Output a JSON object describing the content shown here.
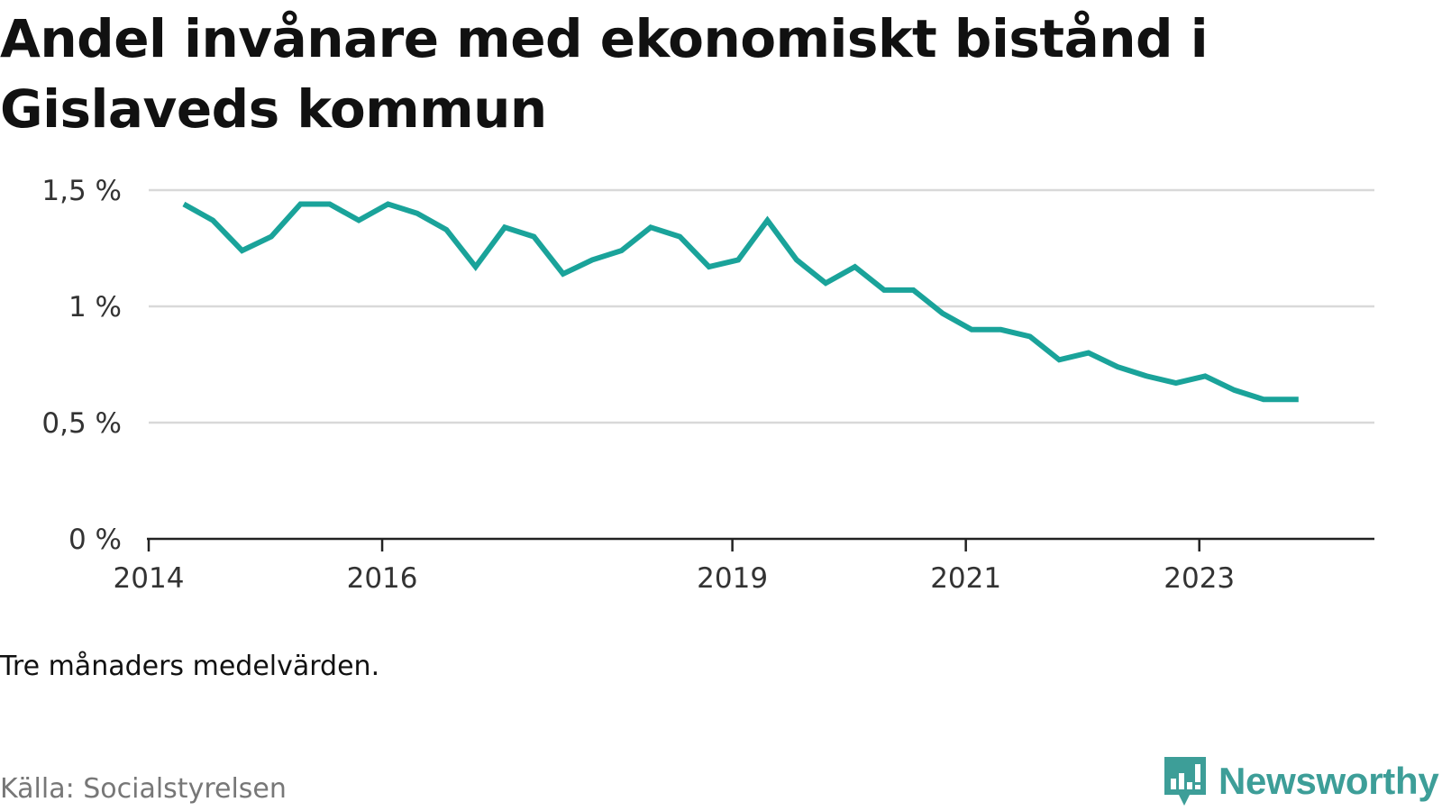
{
  "title": "Andel invånare med ekonomiskt bistånd i Gislaveds kommun",
  "note": "Tre månaders medelvärden.",
  "source": "Källa: Socialstyrelsen",
  "brand": {
    "name": "Newsworthy",
    "logo_icon": "newsworthy-chart-bubble-icon"
  },
  "colors": {
    "line": "#1aa39a",
    "grid": "#d9d9d9",
    "axis": "#222222",
    "brand": "#3d9e98"
  },
  "chart_data": {
    "type": "line",
    "title": "Andel invånare med ekonomiskt bistånd i Gislaveds kommun",
    "xlabel": "",
    "ylabel": "",
    "unit": "%",
    "xlim": [
      2014.0,
      2024.5
    ],
    "ylim": [
      0,
      1.5
    ],
    "y_ticks": [
      0,
      0.5,
      1,
      1.5
    ],
    "y_tick_labels": [
      "0 %",
      "0,5 %",
      "1 %",
      "1,5 %"
    ],
    "x_ticks": [
      2014,
      2016,
      2019,
      2021,
      2023
    ],
    "x_tick_labels": [
      "2014",
      "2016",
      "2019",
      "2021",
      "2023"
    ],
    "grid": true,
    "series": [
      {
        "name": "Andel invånare med ekonomiskt bistånd",
        "x": [
          2014.3,
          2014.55,
          2014.8,
          2015.05,
          2015.3,
          2015.55,
          2015.8,
          2016.05,
          2016.3,
          2016.55,
          2016.8,
          2017.05,
          2017.3,
          2017.55,
          2017.8,
          2018.05,
          2018.3,
          2018.55,
          2018.8,
          2019.05,
          2019.3,
          2019.55,
          2019.8,
          2020.05,
          2020.3,
          2020.55,
          2020.8,
          2021.05,
          2021.3,
          2021.55,
          2021.8,
          2022.05,
          2022.3,
          2022.55,
          2022.8,
          2023.05,
          2023.3,
          2023.55,
          2023.85
        ],
        "values": [
          1.44,
          1.37,
          1.24,
          1.3,
          1.44,
          1.44,
          1.37,
          1.44,
          1.4,
          1.33,
          1.17,
          1.34,
          1.3,
          1.14,
          1.2,
          1.24,
          1.34,
          1.3,
          1.17,
          1.2,
          1.37,
          1.2,
          1.1,
          1.17,
          1.07,
          1.07,
          0.97,
          0.9,
          0.9,
          0.87,
          0.77,
          0.8,
          0.74,
          0.7,
          0.67,
          0.7,
          0.64,
          0.6,
          0.6
        ]
      }
    ]
  }
}
